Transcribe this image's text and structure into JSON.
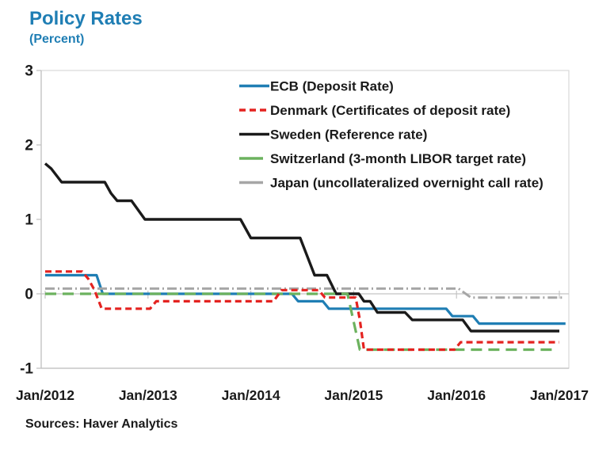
{
  "chart_data": {
    "type": "line",
    "title": "Policy Rates",
    "subtitle": "(Percent)",
    "source_note": "Sources: Haver Analytics",
    "xlabel": "",
    "ylabel": "",
    "legend_position": "inside-top-center",
    "grid": "zero-axis-line-only",
    "colors": {
      "title": "#1f7eb4",
      "subtitle": "#1f7eb4",
      "axis_line": "#bfbfbf",
      "plot_border": "#d9d9d9",
      "zero_line": "#c4c4c4",
      "text": "#1a1a1a"
    },
    "x_axis": {
      "tick_labels": [
        "Jan/2012",
        "Jan/2013",
        "Jan/2014",
        "Jan/2015",
        "Jan/2016",
        "Jan/2017"
      ],
      "tick_values": [
        2012,
        2013,
        2014,
        2015,
        2016,
        2017
      ],
      "range": [
        2011.96,
        2017.1
      ]
    },
    "y_axis": {
      "tick_labels": [
        "3",
        "2",
        "1",
        "0",
        "-1"
      ],
      "tick_values": [
        3,
        2,
        1,
        0,
        -1
      ],
      "range": [
        -1,
        3
      ]
    },
    "draw_order": [
      0,
      4,
      2,
      3,
      1
    ],
    "series": [
      {
        "name": "ECB (Deposit Rate)",
        "color": "#1f7eb4",
        "dash": "",
        "width": 3.2,
        "legend_dash": "",
        "legend_len": 38,
        "points": [
          [
            2012.0,
            0.25
          ],
          [
            2012.5,
            0.25
          ],
          [
            2012.56,
            0.0
          ],
          [
            2014.4,
            0.0
          ],
          [
            2014.46,
            -0.1
          ],
          [
            2014.7,
            -0.1
          ],
          [
            2014.76,
            -0.2
          ],
          [
            2015.9,
            -0.2
          ],
          [
            2015.96,
            -0.3
          ],
          [
            2016.16,
            -0.3
          ],
          [
            2016.22,
            -0.4
          ],
          [
            2017.06,
            -0.4
          ]
        ]
      },
      {
        "name": "Denmark (Certificates of deposit rate)",
        "color": "#e42320",
        "dash": "8,5",
        "width": 3.2,
        "legend_dash": "8,5",
        "legend_len": 38,
        "points": [
          [
            2012.0,
            0.3
          ],
          [
            2012.36,
            0.3
          ],
          [
            2012.42,
            0.2
          ],
          [
            2012.48,
            0.05
          ],
          [
            2012.55,
            -0.2
          ],
          [
            2013.02,
            -0.2
          ],
          [
            2013.08,
            -0.1
          ],
          [
            2014.22,
            -0.1
          ],
          [
            2014.3,
            0.05
          ],
          [
            2014.66,
            0.05
          ],
          [
            2014.72,
            -0.05
          ],
          [
            2015.02,
            -0.05
          ],
          [
            2015.06,
            -0.35
          ],
          [
            2015.1,
            -0.75
          ],
          [
            2015.98,
            -0.75
          ],
          [
            2016.04,
            -0.65
          ],
          [
            2017.0,
            -0.65
          ]
        ]
      },
      {
        "name": "Sweden (Reference rate)",
        "color": "#1a1a1a",
        "dash": "",
        "width": 3.4,
        "legend_dash": "",
        "legend_len": 38,
        "points": [
          [
            2012.0,
            1.75
          ],
          [
            2012.06,
            1.68
          ],
          [
            2012.16,
            1.5
          ],
          [
            2012.58,
            1.5
          ],
          [
            2012.64,
            1.35
          ],
          [
            2012.7,
            1.25
          ],
          [
            2012.84,
            1.25
          ],
          [
            2012.97,
            1.0
          ],
          [
            2013.9,
            1.0
          ],
          [
            2014.0,
            0.75
          ],
          [
            2014.48,
            0.75
          ],
          [
            2014.62,
            0.25
          ],
          [
            2014.74,
            0.25
          ],
          [
            2014.83,
            0.0
          ],
          [
            2015.05,
            0.0
          ],
          [
            2015.1,
            -0.1
          ],
          [
            2015.16,
            -0.1
          ],
          [
            2015.23,
            -0.25
          ],
          [
            2015.5,
            -0.25
          ],
          [
            2015.57,
            -0.35
          ],
          [
            2016.06,
            -0.35
          ],
          [
            2016.14,
            -0.5
          ],
          [
            2017.0,
            -0.5
          ]
        ]
      },
      {
        "name": "Switzerland (3-month LIBOR target rate)",
        "color": "#6cb25e",
        "dash": "14,8",
        "width": 3.2,
        "legend_dash": "",
        "legend_len": 30,
        "points": [
          [
            2012.0,
            0.0
          ],
          [
            2014.94,
            0.0
          ],
          [
            2015.06,
            -0.75
          ],
          [
            2016.96,
            -0.75
          ]
        ]
      },
      {
        "name": "Japan (uncollateralized overnight call rate)",
        "color": "#a6a6a6",
        "dash": "12,4,2,4",
        "width": 3.0,
        "legend_dash": "",
        "legend_len": 30,
        "points": [
          [
            2012.0,
            0.07
          ],
          [
            2016.02,
            0.07
          ],
          [
            2016.14,
            -0.05
          ],
          [
            2017.03,
            -0.05
          ]
        ]
      }
    ]
  }
}
